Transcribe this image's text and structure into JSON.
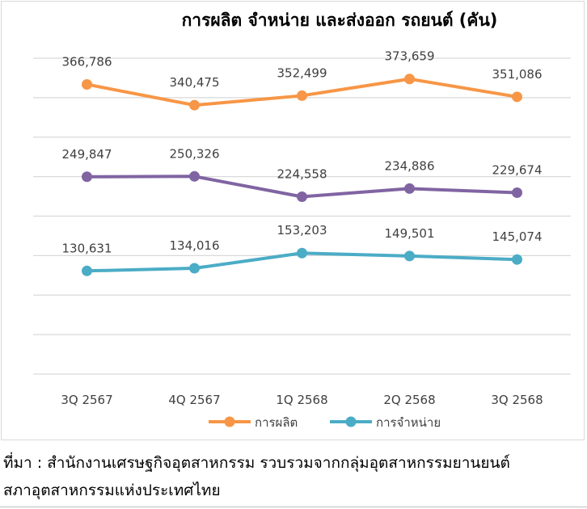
{
  "chart_data": {
    "type": "line",
    "title": "การผลิต จำหน่าย และส่งออก รถยนต์ (คัน)",
    "categories": [
      "3Q 2567",
      "4Q 2567",
      "1Q 2568",
      "2Q 2568",
      "3Q 2568"
    ],
    "ylim": [
      0,
      400000
    ],
    "ystep": 50000,
    "grid": true,
    "legend_position": "bottom",
    "series": [
      {
        "name": "การผลิต",
        "color": "#f79646",
        "in_legend": true,
        "values": [
          366786,
          340475,
          352499,
          373659,
          351086
        ],
        "labels": [
          "366,786",
          "340,475",
          "352,499",
          "373,659",
          "351,086"
        ]
      },
      {
        "name": "",
        "color": "#8064a2",
        "in_legend": false,
        "values": [
          249847,
          250326,
          224558,
          234886,
          229674
        ],
        "labels": [
          "249,847",
          "250,326",
          "224,558",
          "234,886",
          "229,674"
        ]
      },
      {
        "name": "การจำหน่าย",
        "color": "#4bacc6",
        "in_legend": true,
        "values": [
          130631,
          134016,
          153203,
          149501,
          145074
        ],
        "labels": [
          "130,631",
          "134,016",
          "153,203",
          "149,501",
          "145,074"
        ]
      }
    ]
  },
  "source": {
    "line1": "ที่มา : สำนักงานเศรษฐกิจอุตสาหกรรม รวบรวมจากกลุ่มอุตสาหกรรมยานยนต์",
    "line2": "สภาอุตสาหกรรมแห่งประเทศไทย"
  }
}
